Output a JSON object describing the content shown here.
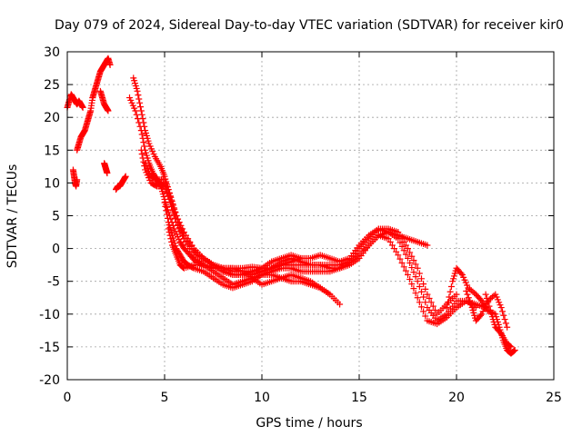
{
  "chart_data": {
    "type": "scatter",
    "title": "Day 079 of 2024, Sidereal Day-to-day VTEC variation (SDTVAR) for receiver kir0",
    "xlabel": "GPS time / hours",
    "ylabel": "SDTVAR / TECUs",
    "xlim": [
      0,
      25
    ],
    "ylim": [
      -20,
      30
    ],
    "xticks": [
      0,
      5,
      10,
      15,
      20,
      25
    ],
    "yticks": [
      -20,
      -15,
      -10,
      -5,
      0,
      5,
      10,
      15,
      20,
      25,
      30
    ],
    "grid": true,
    "marker": "+",
    "color": "#ff0000",
    "series": [
      {
        "name": "trace-1",
        "x": [
          0.0,
          0.1,
          0.2,
          0.3,
          0.4,
          0.5,
          0.6,
          0.7,
          0.8
        ],
        "y": [
          21.5,
          22.5,
          23.5,
          23.0,
          22.5,
          22.0,
          22.5,
          22.0,
          21.5
        ]
      },
      {
        "name": "trace-2",
        "x": [
          0.3,
          0.35,
          0.4,
          0.45,
          0.5
        ],
        "y": [
          12.0,
          11.0,
          10.0,
          9.5,
          10.5
        ]
      },
      {
        "name": "trace-3",
        "x": [
          0.5,
          0.6,
          0.7,
          0.8,
          0.9,
          1.0,
          1.1,
          1.2,
          1.3
        ],
        "y": [
          15.0,
          16.0,
          17.0,
          17.5,
          18.0,
          19.0,
          20.0,
          21.0,
          23.0
        ]
      },
      {
        "name": "trace-4",
        "x": [
          1.3,
          1.4,
          1.5,
          1.6,
          1.7,
          1.8,
          1.9,
          2.0,
          2.1,
          2.2
        ],
        "y": [
          23.0,
          24.0,
          25.0,
          26.0,
          27.0,
          27.5,
          28.0,
          28.5,
          29.0,
          28.0
        ]
      },
      {
        "name": "trace-5",
        "x": [
          1.7,
          1.8,
          1.9,
          2.0,
          2.1
        ],
        "y": [
          24.0,
          23.0,
          22.0,
          21.5,
          21.0
        ]
      },
      {
        "name": "trace-6",
        "x": [
          1.9,
          1.95,
          2.0,
          2.05
        ],
        "y": [
          13.0,
          12.5,
          12.0,
          11.5
        ]
      },
      {
        "name": "trace-7",
        "x": [
          2.5,
          2.6,
          2.7,
          2.8,
          2.9,
          3.0
        ],
        "y": [
          9.0,
          9.5,
          9.5,
          10.0,
          10.5,
          11.0
        ]
      },
      {
        "name": "trace-8",
        "x": [
          3.2,
          3.5,
          3.8,
          4.0,
          4.2,
          4.4,
          4.6,
          4.8,
          5.0,
          5.2,
          5.5,
          5.8,
          6.0,
          6.3,
          6.6,
          7.0
        ],
        "y": [
          23.0,
          21.0,
          18.0,
          15.0,
          13.0,
          11.5,
          10.5,
          9.5,
          7.5,
          5.5,
          3.0,
          1.0,
          0.0,
          -1.0,
          -2.0,
          -2.5
        ]
      },
      {
        "name": "trace-9",
        "x": [
          3.4,
          3.6,
          3.8,
          4.0,
          4.2,
          4.5,
          4.8,
          5.0,
          5.2,
          5.5,
          5.8,
          6.0,
          6.5,
          7.0,
          7.5,
          8.0,
          8.5,
          9.0,
          9.5,
          10.0,
          10.5,
          11.0,
          11.5,
          12.0,
          12.5,
          13.0,
          13.5,
          14.0,
          14.5,
          15.0,
          15.5,
          16.0,
          16.5,
          17.0,
          17.5,
          18.0,
          18.5
        ],
        "y": [
          26.0,
          24.0,
          21.0,
          18.0,
          16.0,
          14.0,
          12.5,
          11.0,
          9.0,
          6.0,
          3.5,
          1.5,
          -0.5,
          -1.5,
          -2.5,
          -3.0,
          -3.0,
          -3.0,
          -2.8,
          -3.0,
          -3.0,
          -2.5,
          -2.5,
          -2.5,
          -2.5,
          -2.5,
          -2.5,
          -2.5,
          -2.0,
          -1.0,
          0.5,
          2.0,
          2.5,
          2.0,
          1.5,
          1.0,
          0.5
        ]
      },
      {
        "name": "trace-10",
        "x": [
          3.8,
          4.0,
          4.3,
          4.6,
          5.0,
          5.3,
          5.6,
          6.0,
          6.5,
          7.0,
          7.5,
          8.0,
          8.5,
          9.0,
          9.5,
          10.0,
          10.5,
          11.0,
          11.5,
          12.0,
          12.5,
          13.0,
          13.5,
          14.0,
          14.5,
          15.0,
          15.5,
          16.0,
          16.5,
          17.0,
          17.5,
          18.0,
          18.5,
          19.0,
          19.5,
          20.0
        ],
        "y": [
          15.0,
          12.0,
          10.0,
          9.5,
          9.5,
          7.0,
          4.0,
          2.0,
          0.0,
          -1.5,
          -2.5,
          -3.0,
          -3.5,
          -3.5,
          -3.5,
          -3.5,
          -3.0,
          -2.5,
          -2.0,
          -1.5,
          -1.5,
          -1.0,
          -1.5,
          -2.0,
          -1.5,
          0.5,
          2.0,
          3.0,
          3.0,
          2.5,
          0.0,
          -3.0,
          -7.0,
          -10.0,
          -8.5,
          -7.0
        ]
      },
      {
        "name": "trace-11",
        "x": [
          4.0,
          4.3,
          4.6,
          5.0,
          5.3,
          5.6,
          6.0,
          6.5,
          7.0,
          7.5,
          8.0,
          8.5,
          9.0,
          9.5,
          10.0,
          10.5,
          11.0,
          11.5,
          12.0,
          12.5,
          13.0,
          13.5,
          14.0,
          14.5,
          15.0,
          15.5,
          16.0,
          16.5,
          17.0,
          17.5,
          18.0,
          18.5,
          19.0,
          19.5,
          20.0,
          20.5,
          21.0
        ],
        "y": [
          13.0,
          11.0,
          10.5,
          10.5,
          8.0,
          5.0,
          2.5,
          0.0,
          -1.5,
          -2.5,
          -3.5,
          -4.0,
          -4.0,
          -4.0,
          -3.5,
          -3.0,
          -2.0,
          -1.5,
          -2.0,
          -2.5,
          -2.5,
          -3.0,
          -3.0,
          -2.0,
          0.0,
          1.5,
          3.0,
          2.5,
          1.5,
          -1.5,
          -5.0,
          -9.0,
          -11.0,
          -10.0,
          -8.0,
          -8.0,
          -9.0
        ]
      },
      {
        "name": "trace-12",
        "x": [
          4.4,
          4.7,
          5.0,
          5.3,
          5.6,
          6.0,
          6.5,
          7.0,
          7.5,
          8.0,
          8.5,
          9.0,
          9.5,
          10.0,
          10.5,
          11.0,
          11.5,
          12.0,
          12.5,
          13.0,
          13.5,
          14.0,
          14.5,
          15.0,
          15.5,
          16.0,
          16.5,
          17.0,
          17.5,
          18.0,
          18.5,
          19.0,
          19.5,
          20.0,
          20.5,
          21.0,
          21.5
        ],
        "y": [
          11.5,
          10.0,
          9.5,
          7.0,
          4.0,
          1.5,
          -1.0,
          -2.5,
          -3.5,
          -4.5,
          -5.5,
          -5.0,
          -4.5,
          -4.0,
          -3.5,
          -3.0,
          -3.0,
          -3.5,
          -3.5,
          -3.5,
          -3.5,
          -3.0,
          -2.5,
          -1.5,
          0.5,
          2.0,
          1.5,
          -1.0,
          -4.0,
          -7.5,
          -11.0,
          -11.5,
          -10.5,
          -9.0,
          -8.0,
          -8.5,
          -9.0
        ]
      },
      {
        "name": "trace-13",
        "x": [
          5.0,
          5.2,
          5.4,
          5.6,
          5.8,
          6.0,
          6.2,
          6.5,
          7.0,
          7.5,
          8.0,
          8.5,
          9.0,
          9.5,
          10.0,
          10.5,
          11.0,
          11.5,
          12.0,
          12.5,
          13.0,
          13.5,
          14.0
        ],
        "y": [
          7.0,
          4.0,
          2.0,
          0.0,
          -1.0,
          -2.0,
          -2.5,
          -3.0,
          -3.5,
          -4.5,
          -5.5,
          -6.0,
          -5.5,
          -5.0,
          -4.0,
          -4.0,
          -4.5,
          -5.0,
          -5.0,
          -5.5,
          -6.0,
          -7.0,
          -8.5
        ]
      },
      {
        "name": "trace-14",
        "x": [
          5.2,
          5.4,
          5.6,
          5.8,
          6.0,
          6.5,
          7.0,
          7.5,
          8.0,
          8.5,
          9.0,
          9.5,
          10.0,
          10.5,
          11.0,
          11.5,
          12.0,
          12.5,
          13.0,
          13.5
        ],
        "y": [
          3.0,
          0.5,
          -1.0,
          -2.5,
          -3.0,
          -2.5,
          -2.5,
          -3.0,
          -3.0,
          -3.0,
          -3.5,
          -4.5,
          -5.5,
          -5.0,
          -4.5,
          -4.0,
          -4.5,
          -5.0,
          -6.0,
          -7.0
        ]
      },
      {
        "name": "trace-15",
        "x": [
          8.0,
          8.5,
          9.0,
          9.5,
          10.0,
          10.5,
          11.0,
          11.5,
          12.0
        ],
        "y": [
          -3.5,
          -4.0,
          -4.0,
          -3.5,
          -3.0,
          -2.0,
          -1.5,
          -1.0,
          -1.5
        ]
      },
      {
        "name": "trace-16",
        "x": [
          19.5,
          19.8,
          20.0,
          20.3,
          20.6,
          21.0,
          21.3,
          21.6,
          22.0,
          22.2,
          22.4,
          22.6,
          22.8,
          23.0
        ],
        "y": [
          -9.0,
          -5.0,
          -3.0,
          -4.0,
          -6.0,
          -7.0,
          -8.0,
          -9.5,
          -10.0,
          -12.0,
          -14.0,
          -15.5,
          -16.0,
          -15.5
        ]
      },
      {
        "name": "trace-17",
        "x": [
          20.5,
          20.8,
          21.0,
          21.3,
          21.6,
          22.0,
          22.3,
          22.6
        ],
        "y": [
          -6.5,
          -9.0,
          -11.0,
          -10.0,
          -8.0,
          -7.0,
          -9.0,
          -12.0
        ]
      },
      {
        "name": "trace-18",
        "x": [
          21.5,
          21.8,
          22.0,
          22.3,
          22.6,
          22.8
        ],
        "y": [
          -7.0,
          -10.0,
          -12.0,
          -13.0,
          -14.5,
          -15.0
        ]
      }
    ]
  }
}
